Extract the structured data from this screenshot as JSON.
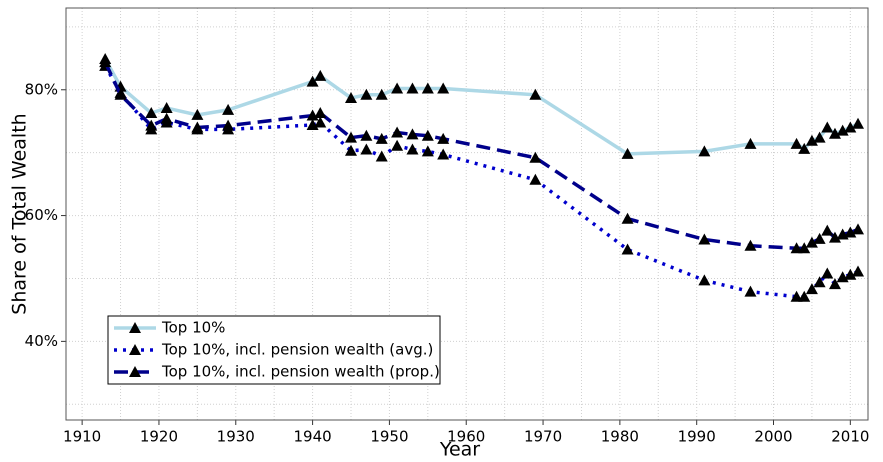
{
  "chart_data": {
    "type": "line",
    "x_label": "Year",
    "y_label": "Share of Total Wealth",
    "x": [
      1913,
      1915,
      1919,
      1921,
      1925,
      1929,
      1940,
      1941,
      1945,
      1947,
      1949,
      1951,
      1953,
      1955,
      1957,
      1969,
      1981,
      1991,
      1997,
      2003,
      2004,
      2005,
      2006,
      2007,
      2008,
      2009,
      2010,
      2011
    ],
    "series": [
      {
        "name": "Top 10%",
        "color": "#add8e6",
        "linestyle": "solid",
        "marker_color": "#000000",
        "values": [
          84.9,
          80.5,
          76.3,
          77.1,
          76.0,
          76.8,
          81.3,
          82.2,
          78.7,
          79.2,
          79.2,
          80.2,
          80.2,
          80.2,
          80.2,
          79.2,
          69.8,
          70.2,
          71.4,
          71.4,
          70.6,
          71.9,
          72.4,
          74.0,
          73.0,
          73.5,
          74.0,
          74.6
        ]
      },
      {
        "name": "Top 10%, incl. pension wealth (avg.)",
        "color": "#0000cd",
        "linestyle": "dotted",
        "marker_color": "#000000",
        "values": [
          83.8,
          79.5,
          73.7,
          74.8,
          73.7,
          73.7,
          74.4,
          74.8,
          70.3,
          70.5,
          69.4,
          71.1,
          70.5,
          70.2,
          69.7,
          65.7,
          54.6,
          49.7,
          47.9,
          47.1,
          47.1,
          48.3,
          49.4,
          50.8,
          49.1,
          50.2,
          50.6,
          51.1
        ]
      },
      {
        "name": "Top 10%, incl. pension wealth (prop.)",
        "color": "#00008b",
        "linestyle": "dashed",
        "marker_color": "#000000",
        "values": [
          84.4,
          79.2,
          74.3,
          75.4,
          74.0,
          74.3,
          75.9,
          76.3,
          72.4,
          72.7,
          72.2,
          73.2,
          72.9,
          72.7,
          72.2,
          69.2,
          59.5,
          56.2,
          55.2,
          54.8,
          54.8,
          55.7,
          56.3,
          57.6,
          56.5,
          57.0,
          57.3,
          57.8
        ]
      }
    ],
    "xlim": [
      1907.9,
      2012.3
    ],
    "ylim": [
      27.5,
      93
    ],
    "xticks": [
      1910,
      1920,
      1930,
      1940,
      1950,
      1960,
      1970,
      1980,
      1990,
      2000,
      2010
    ],
    "yticks": [
      {
        "value": 40,
        "label": "40%"
      },
      {
        "value": 60,
        "label": "60%"
      },
      {
        "value": 80,
        "label": "80%"
      }
    ],
    "grid": true,
    "legend": "lower left"
  }
}
